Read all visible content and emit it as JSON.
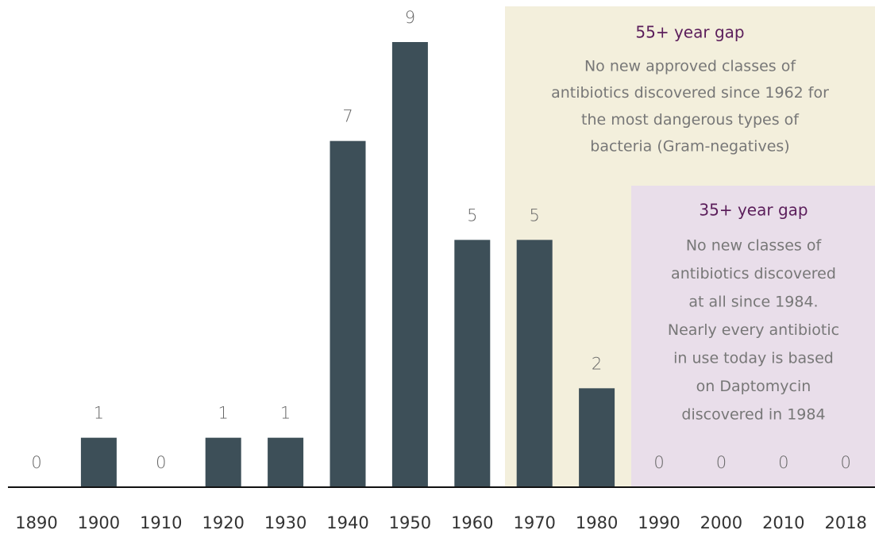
{
  "chart_data": {
    "type": "bar",
    "categories": [
      "1890",
      "1900",
      "1910",
      "1920",
      "1930",
      "1940",
      "1950",
      "1960",
      "1970",
      "1980",
      "1990",
      "2000",
      "2010",
      "2018"
    ],
    "values": [
      0,
      1,
      0,
      1,
      1,
      7,
      9,
      5,
      5,
      2,
      0,
      0,
      0,
      0
    ],
    "color": "#3d4f58",
    "annotations": [
      {
        "title": "55+ year gap",
        "lines": [
          "No new approved classes of",
          "antibiotics discovered since 1962 for",
          "the most dangerous types of",
          "bacteria (Gram-negatives)"
        ],
        "color": "#f3efdc"
      },
      {
        "title": "35+ year gap",
        "lines": [
          "No new classes of",
          "antibiotics discovered",
          "at all since 1984.",
          "Nearly every antibiotic",
          "in use today is based",
          "on Daptomycin",
          "discovered in 1984"
        ],
        "color": "#e9deea"
      }
    ]
  }
}
